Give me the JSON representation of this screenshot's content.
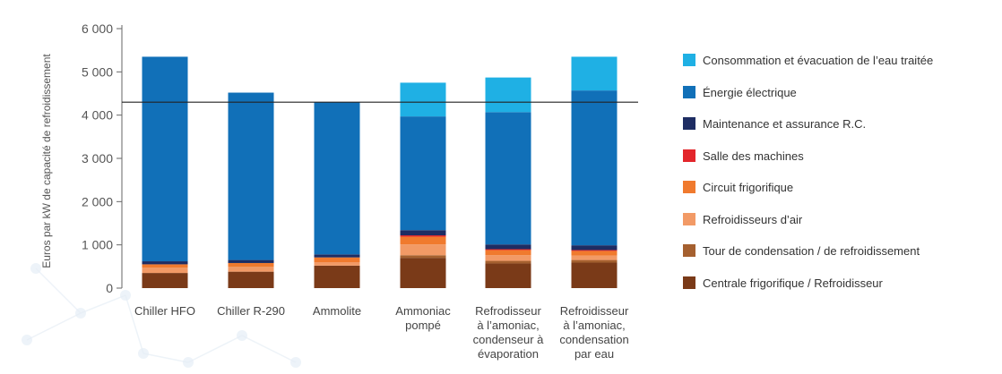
{
  "chart_data": {
    "type": "bar",
    "stacked": true,
    "ylabel": "Euros par kW de capacité de refroidissement",
    "ylim": [
      0,
      6000
    ],
    "yticks": [
      0,
      1000,
      2000,
      3000,
      4000,
      5000,
      6000
    ],
    "ytick_labels": [
      "0",
      "1 000",
      "2 000",
      "3 000",
      "4 000",
      "5 000",
      "6 000"
    ],
    "reference_line": 4300,
    "grid": false,
    "legend_position": "right",
    "categories": [
      [
        "Chiller HFO"
      ],
      [
        "Chiller R-290"
      ],
      [
        "Ammolite"
      ],
      [
        "Ammoniac",
        "pompé"
      ],
      [
        "Refrodisseur",
        "à l’amoniac,",
        "condenseur à",
        "évaporation"
      ],
      [
        "Refroidisseur",
        "à l’amoniac,",
        "condensation",
        "par eau"
      ]
    ],
    "highlight_category_index": 2,
    "highlight_color": "#1a8fc9",
    "series": [
      {
        "name": "Centrale frigorifique / Refroidisseur",
        "color": "#7a3a18",
        "values": [
          350,
          380,
          520,
          700,
          570,
          590
        ]
      },
      {
        "name": "Tour de condensation / de refroidissement",
        "color": "#a5602f",
        "values": [
          0,
          0,
          0,
          60,
          60,
          60
        ]
      },
      {
        "name": "Refroidisseurs d’air",
        "color": "#f29a66",
        "values": [
          120,
          110,
          80,
          250,
          130,
          100
        ]
      },
      {
        "name": "Circuit frigorifique",
        "color": "#f07a2e",
        "values": [
          80,
          90,
          110,
          180,
          120,
          110
        ]
      },
      {
        "name": "Salle des machines",
        "color": "#e3262b",
        "values": [
          0,
          0,
          0,
          30,
          20,
          20
        ]
      },
      {
        "name": "Maintenance et assurance R.C.",
        "color": "#1e2d63",
        "values": [
          70,
          70,
          70,
          120,
          110,
          110
        ]
      },
      {
        "name": "Énergie électrique",
        "color": "#1170b8",
        "values": [
          4730,
          3870,
          3520,
          2630,
          3060,
          3580
        ]
      },
      {
        "name": "Consommation et évacuation de l’eau traitée",
        "color": "#1fb0e4",
        "values": [
          0,
          0,
          0,
          780,
          800,
          780
        ]
      }
    ]
  },
  "legend": [
    {
      "label": "Consommation et évacuation de l’eau traitée",
      "color": "#1fb0e4"
    },
    {
      "label": "Énergie électrique",
      "color": "#1170b8"
    },
    {
      "label": "Maintenance et assurance R.C.",
      "color": "#1e2d63"
    },
    {
      "label": "Salle des machines",
      "color": "#e3262b"
    },
    {
      "label": "Circuit frigorifique",
      "color": "#f07a2e"
    },
    {
      "label": "Refroidisseurs d’air",
      "color": "#f29a66"
    },
    {
      "label": "Tour de condensation / de refroidissement",
      "color": "#a5602f"
    },
    {
      "label": "Centrale frigorifique / Refroidisseur",
      "color": "#7a3a18"
    }
  ],
  "colors": {
    "axis": "#666666",
    "reference_line": "#222222",
    "background_decoration": "#e6eef6"
  }
}
